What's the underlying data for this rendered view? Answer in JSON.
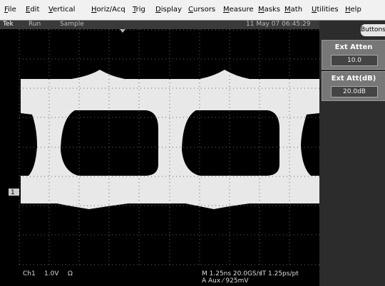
{
  "menu": {
    "items": [
      "File",
      "Edit",
      "Vertical",
      "Horiz/Acq",
      "Trig",
      "Display",
      "Cursors",
      "Measure",
      "Masks",
      "Math",
      "Utilities",
      "Help"
    ]
  },
  "status": {
    "brand": "Tek",
    "state": "Run",
    "mode": "Sample",
    "datetime": "11 May 07 06:45:29"
  },
  "side_panel": {
    "button": "Buttons",
    "controls": [
      {
        "label": "Ext Atten",
        "value": "10.0"
      },
      {
        "label": "Ext Att(dB)",
        "value": "20.0dB"
      }
    ]
  },
  "readout": {
    "channel_marker": "1",
    "channel": "Ch1",
    "scale": "1.0V",
    "coupling": "Ω",
    "timebase": "M 1.25ns 20.0GS/s",
    "interval": "IT 1.25ps/pt",
    "trigger": "A Aux ⁄ 925mV"
  }
}
